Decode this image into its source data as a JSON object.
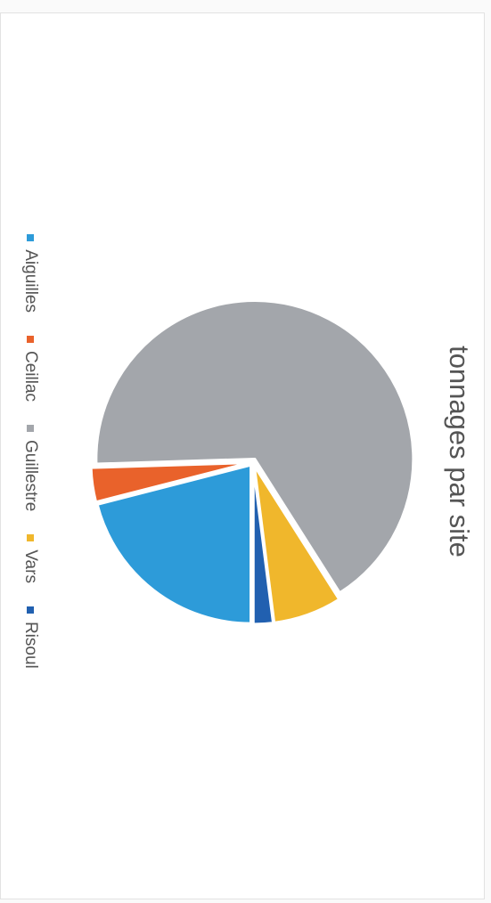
{
  "chart_data": {
    "type": "pie",
    "title": "tonnages par site",
    "categories": [
      "Aiguilles",
      "Ceillac",
      "Guillestre",
      "Vars",
      "Risoul"
    ],
    "values": [
      21,
      3.5,
      66.5,
      7,
      2
    ],
    "colors": [
      "#2d9bd9",
      "#e9622b",
      "#a3a6ab",
      "#f0b72c",
      "#2160b0"
    ],
    "legend_position": "bottom",
    "start_angle_deg": 90,
    "direction": "clockwise",
    "exploded": true
  }
}
